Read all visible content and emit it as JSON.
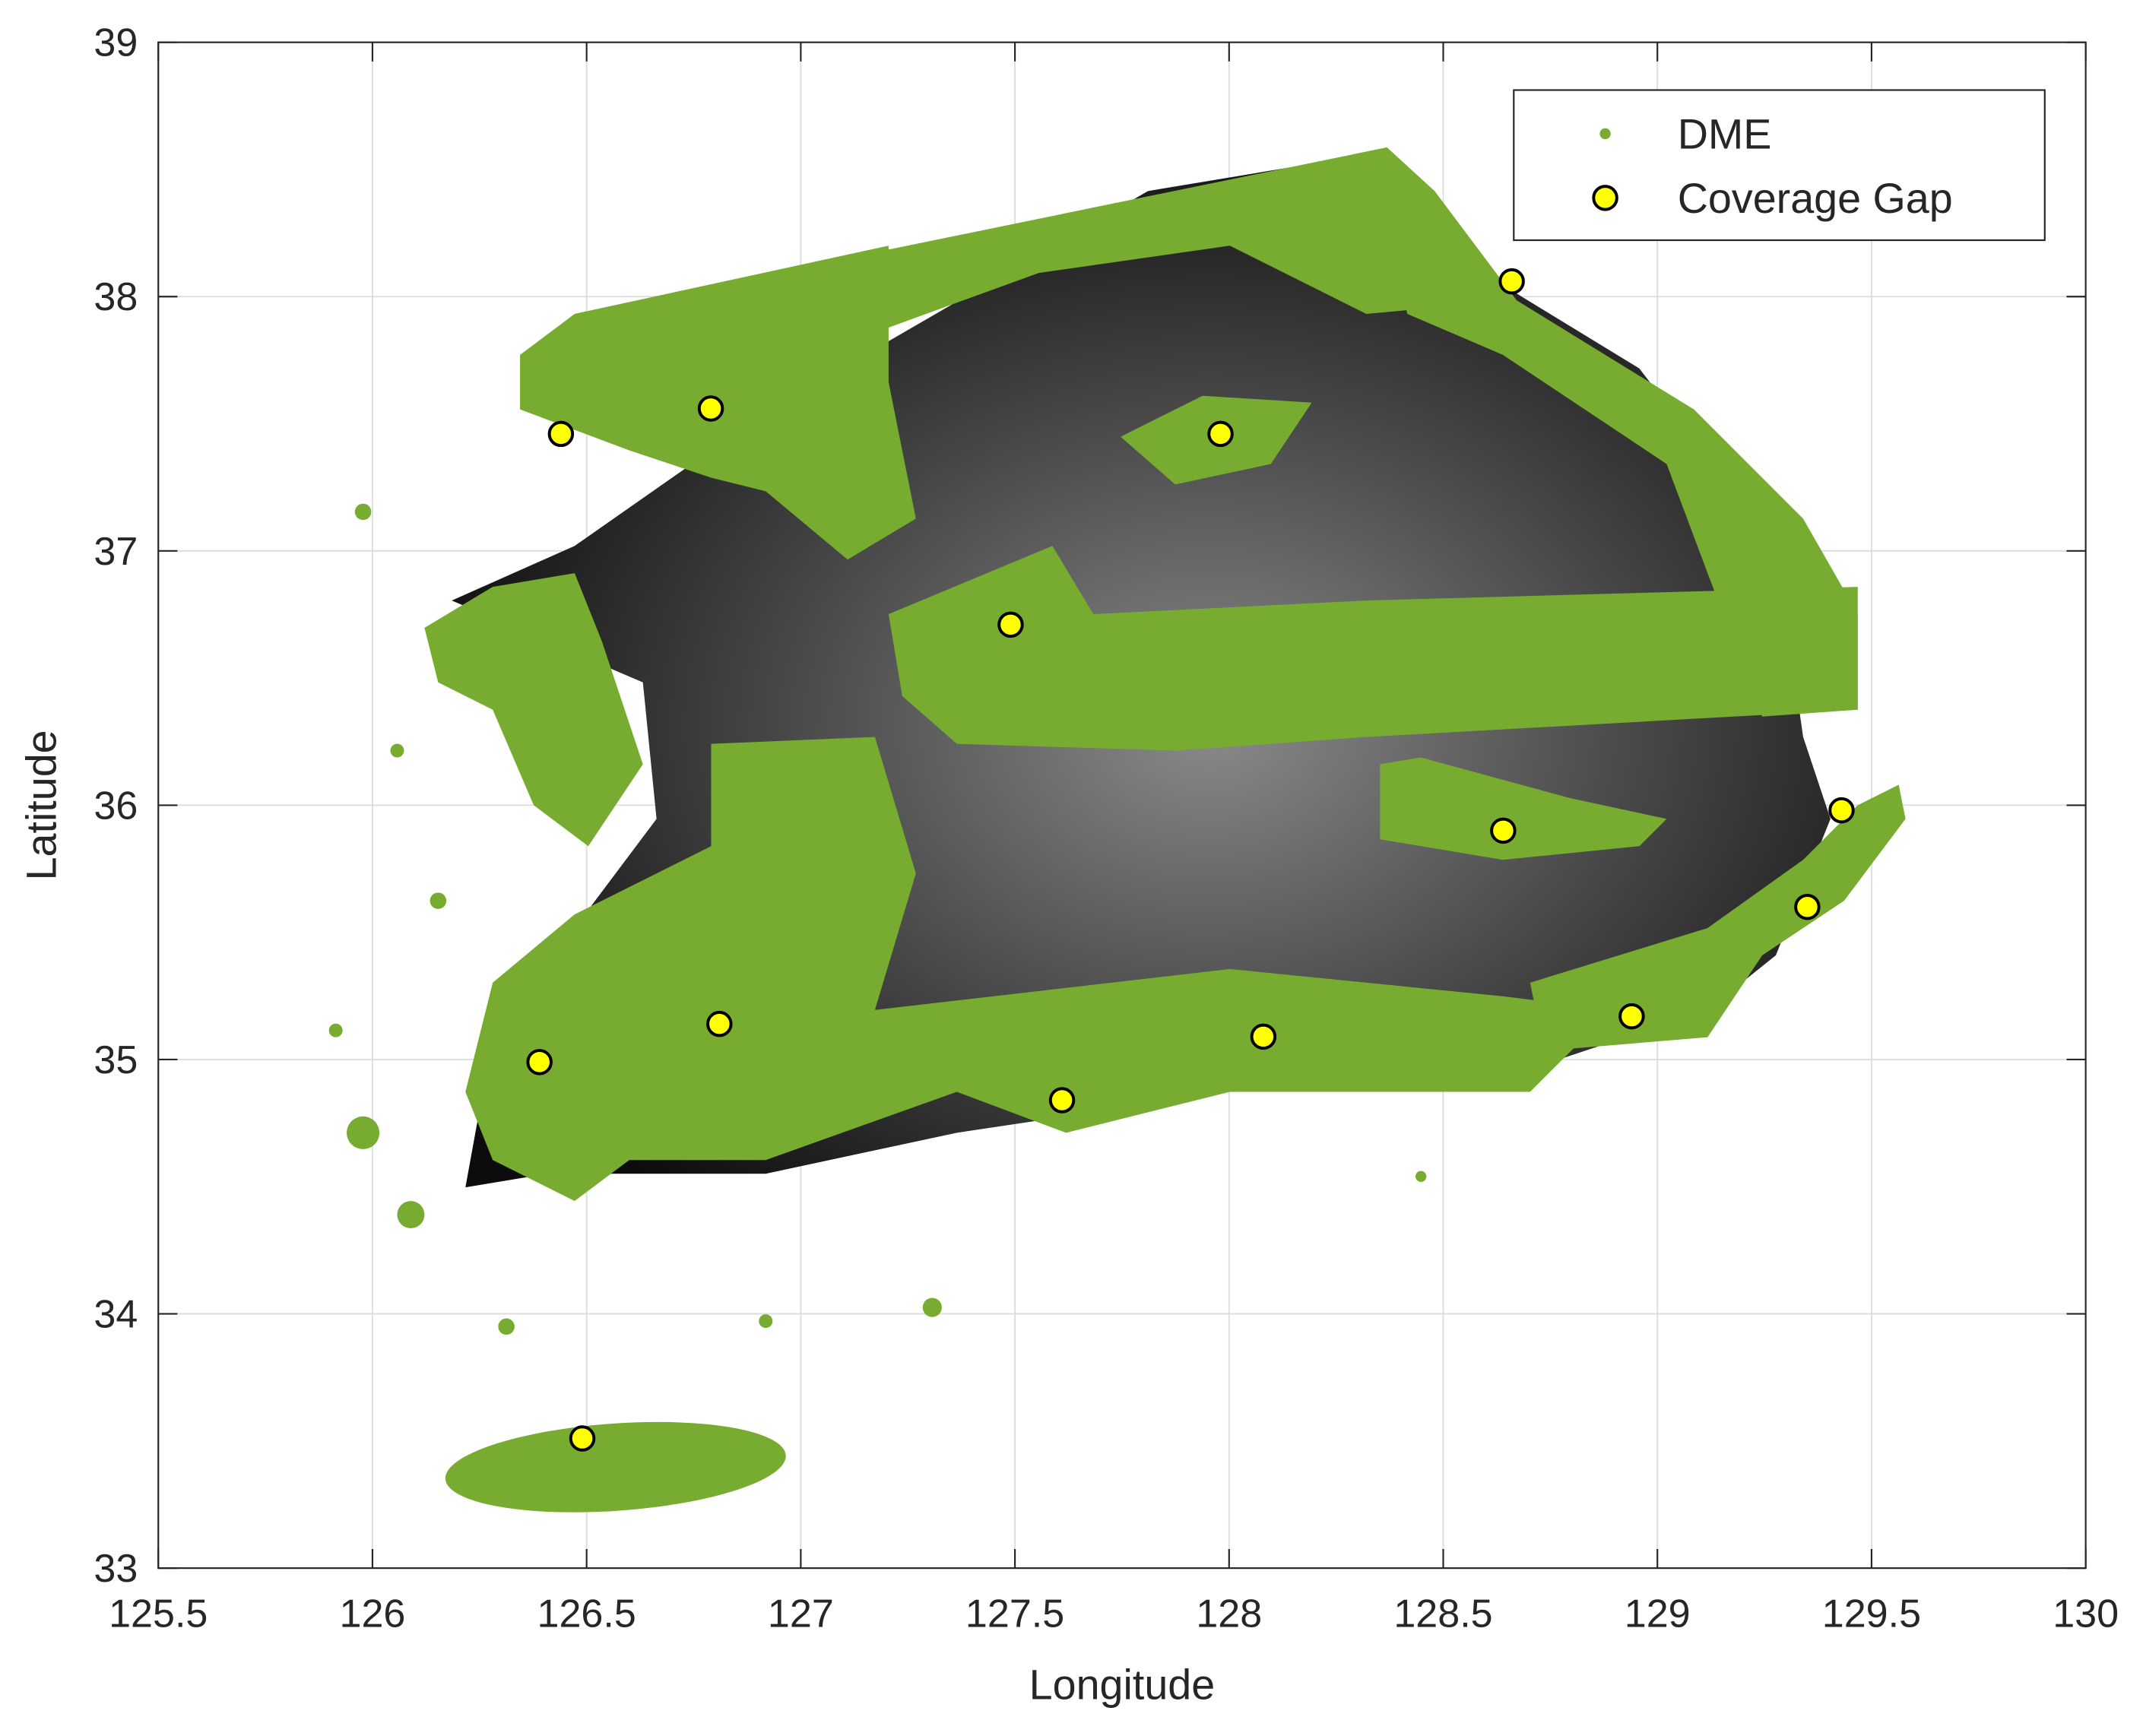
{
  "chart_data": {
    "type": "scatter",
    "x_label": "Longitude",
    "y_label": "Latitude",
    "xlim": [
      125.5,
      130
    ],
    "ylim": [
      33,
      39
    ],
    "xticks": [
      125.5,
      126,
      126.5,
      127,
      127.5,
      128,
      128.5,
      129,
      129.5,
      130
    ],
    "yticks": [
      33,
      34,
      35,
      36,
      37,
      38,
      39
    ],
    "grid": true,
    "legend": "upper right",
    "series": [
      {
        "name": "DME",
        "color": "#77ac30"
      },
      {
        "name": "Coverage Gap",
        "color": "#ffff00",
        "x": [
          126.44,
          126.79,
          127.98,
          128.66,
          127.49,
          128.64,
          129.43,
          129.35,
          128.94,
          128.08,
          127.61,
          126.81,
          126.39,
          126.49
        ],
        "values": [
          37.46,
          37.56,
          37.46,
          38.06,
          36.71,
          35.9,
          35.98,
          35.6,
          35.17,
          35.09,
          34.84,
          35.14,
          34.99,
          33.51
        ]
      }
    ]
  }
}
